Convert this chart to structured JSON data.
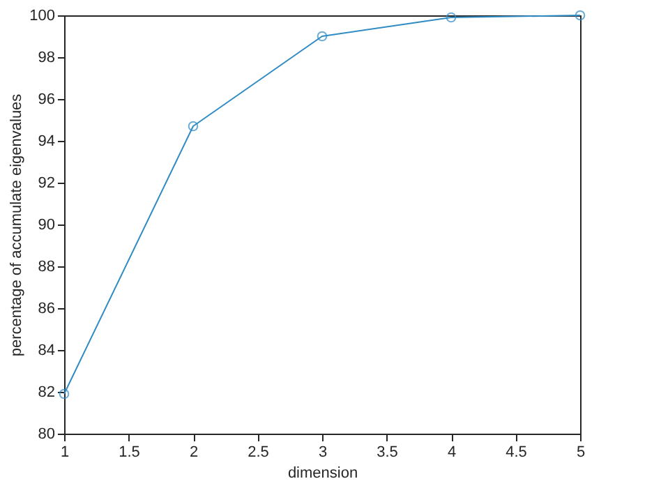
{
  "chart_data": {
    "type": "line",
    "xlabel": "dimension",
    "ylabel": "percentage of accumulate eigenvalues",
    "x": [
      1,
      2,
      3,
      4,
      5
    ],
    "series": [
      {
        "color": "#2f8bc4",
        "values": [
          81.9,
          94.7,
          99.0,
          99.9,
          100.0
        ]
      }
    ],
    "xlim": [
      1,
      5
    ],
    "xticks": [
      1,
      1.5,
      2,
      2.5,
      3,
      3.5,
      4,
      4.5,
      5
    ],
    "ylim": [
      80,
      100
    ],
    "yticks": [
      80,
      82,
      84,
      86,
      88,
      90,
      92,
      94,
      96,
      98,
      100
    ],
    "marker": "circle",
    "line_style": "solid",
    "grid": false
  }
}
